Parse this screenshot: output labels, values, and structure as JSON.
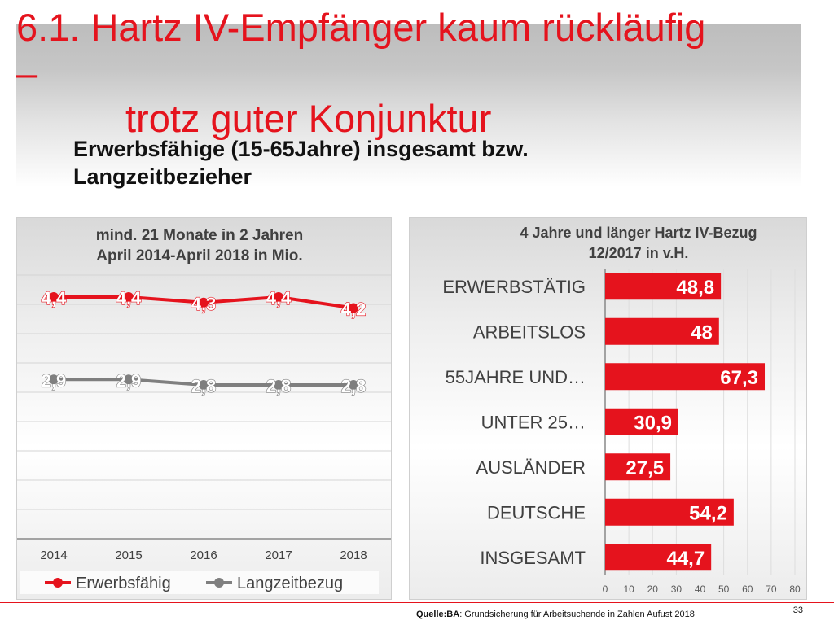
{
  "slide": {
    "title_line1": "6.1. Hartz IV-Empfänger kaum rückläufig",
    "title_line2": "–",
    "title_line3": "trotz guter Konjunktur",
    "subtitle_line1": "Erwerbsfähige (15-65Jahre) insgesamt bzw.",
    "subtitle_line2": "Langzeitbezieher",
    "source_label": "Quelle:BA",
    "source_text": ": Grundsicherung für Arbeitsuchende in Zahlen Aufust 2018",
    "page_number": "33"
  },
  "colors": {
    "accent_red": "#e5131d",
    "line_grey": "#7f7f7f",
    "title_red": "#e5131d"
  },
  "chart_data": [
    {
      "type": "line",
      "title_line1": "mind. 21 Monate in 2 Jahren",
      "title_line2": "April 2014-April 2018 in Mio.",
      "categories": [
        "2014",
        "2015",
        "2016",
        "2017",
        "2018"
      ],
      "series": [
        {
          "name": "Erwerbsfähig",
          "values": [
            4.4,
            4.4,
            4.3,
            4.4,
            4.2
          ],
          "labels": [
            "4,4",
            "4,4",
            "4,3",
            "4,4",
            "4,2"
          ],
          "color": "#e5131d"
        },
        {
          "name": "Langzeitbezug",
          "values": [
            2.9,
            2.9,
            2.8,
            2.8,
            2.8
          ],
          "labels": [
            "2,9",
            "2,9",
            "2,8",
            "2,8",
            "2,8"
          ],
          "color": "#7f7f7f"
        }
      ],
      "ylim": [
        0,
        4.8
      ],
      "grid": true,
      "legend": "bottom"
    },
    {
      "type": "bar",
      "orientation": "horizontal",
      "title_line1": "4 Jahre und länger Hartz IV-Bezug",
      "title_line2": "12/2017 in v.H.",
      "categories": [
        "ERWERBSTÄTIG",
        "ARBEITSLOS",
        "55JAHRE UND…",
        "UNTER 25…",
        "AUSLÄNDER",
        "DEUTSCHE",
        "INSGESAMT"
      ],
      "values": [
        48.8,
        48,
        67.3,
        30.9,
        27.5,
        54.2,
        44.7
      ],
      "labels": [
        "48,8",
        "48",
        "67,3",
        "30,9",
        "27,5",
        "54,2",
        "44,7"
      ],
      "xticks": [
        "0",
        "10",
        "20",
        "30",
        "40",
        "50",
        "60",
        "70",
        "80"
      ],
      "xlim": [
        0,
        80
      ],
      "color": "#e5131d"
    }
  ]
}
